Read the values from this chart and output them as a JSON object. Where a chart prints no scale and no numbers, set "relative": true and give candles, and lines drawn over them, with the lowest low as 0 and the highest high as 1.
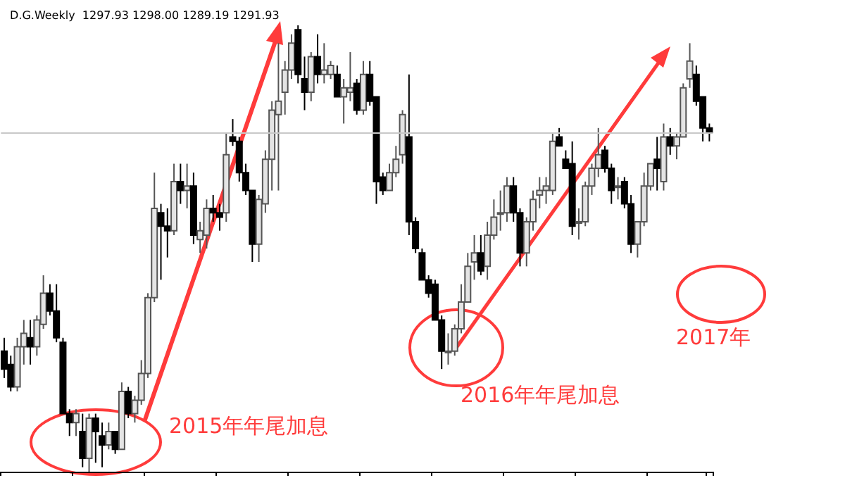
{
  "chart_data": {
    "type": "candlestick",
    "title": "D.G.Weekly  1297.93 1298.00 1289.19 1291.93",
    "relative": true,
    "grid": false,
    "categories": [
      null,
      null,
      null,
      null,
      null,
      null,
      null,
      null,
      null,
      null,
      null,
      null,
      null,
      null,
      null,
      null,
      null,
      null,
      null,
      null,
      null,
      null,
      null,
      null,
      null,
      null,
      null,
      null,
      null,
      null,
      null,
      null,
      null,
      null,
      null,
      null,
      null,
      null,
      null,
      null,
      null,
      null,
      null,
      null,
      null,
      null,
      null,
      null,
      null,
      null,
      null,
      null,
      null,
      null,
      null,
      null,
      null,
      null,
      null,
      null,
      null,
      null,
      null,
      null,
      null,
      null,
      null,
      null,
      null,
      null,
      null,
      null,
      null,
      null,
      null,
      null,
      null,
      null,
      null,
      null,
      null,
      null,
      null,
      null,
      null,
      null,
      null,
      null,
      null,
      null,
      null,
      null,
      null,
      null,
      null,
      null,
      null,
      null,
      null,
      null,
      null,
      null,
      null,
      null,
      null,
      null,
      null,
      null,
      null
    ],
    "ohlc": [
      [
        0.27,
        0.3,
        0.21,
        0.23
      ],
      [
        0.24,
        0.26,
        0.18,
        0.19
      ],
      [
        0.19,
        0.3,
        0.18,
        0.28
      ],
      [
        0.28,
        0.34,
        0.24,
        0.31
      ],
      [
        0.3,
        0.34,
        0.24,
        0.28
      ],
      [
        0.28,
        0.35,
        0.26,
        0.34
      ],
      [
        0.33,
        0.44,
        0.32,
        0.4
      ],
      [
        0.4,
        0.42,
        0.35,
        0.36
      ],
      [
        0.36,
        0.42,
        0.29,
        0.3
      ],
      [
        0.29,
        0.3,
        0.13,
        0.13
      ],
      [
        0.13,
        0.14,
        0.08,
        0.11
      ],
      [
        0.11,
        0.14,
        0.08,
        0.13
      ],
      [
        0.09,
        0.13,
        0.01,
        0.03
      ],
      [
        0.03,
        0.13,
        0.0,
        0.12
      ],
      [
        0.12,
        0.13,
        0.02,
        0.09
      ],
      [
        0.08,
        0.11,
        0.01,
        0.06
      ],
      [
        0.06,
        0.11,
        0.05,
        0.09
      ],
      [
        0.09,
        0.09,
        0.04,
        0.05
      ],
      [
        0.05,
        0.2,
        0.05,
        0.18
      ],
      [
        0.18,
        0.19,
        0.12,
        0.13
      ],
      [
        0.13,
        0.17,
        0.11,
        0.16
      ],
      [
        0.16,
        0.25,
        0.15,
        0.22
      ],
      [
        0.22,
        0.4,
        0.21,
        0.39
      ],
      [
        0.39,
        0.67,
        0.38,
        0.59
      ],
      [
        0.58,
        0.6,
        0.43,
        0.55
      ],
      [
        0.55,
        0.59,
        0.48,
        0.54
      ],
      [
        0.54,
        0.69,
        0.53,
        0.65
      ],
      [
        0.65,
        0.69,
        0.6,
        0.63
      ],
      [
        0.63,
        0.69,
        0.59,
        0.64
      ],
      [
        0.64,
        0.67,
        0.51,
        0.53
      ],
      [
        0.52,
        0.56,
        0.49,
        0.54
      ],
      [
        0.53,
        0.61,
        0.5,
        0.59
      ],
      [
        0.59,
        0.62,
        0.56,
        0.58
      ],
      [
        0.58,
        0.6,
        0.54,
        0.57
      ],
      [
        0.58,
        0.76,
        0.56,
        0.71
      ],
      [
        0.75,
        0.79,
        0.73,
        0.74
      ],
      [
        0.74,
        0.75,
        0.65,
        0.67
      ],
      [
        0.67,
        0.69,
        0.62,
        0.63
      ],
      [
        0.63,
        0.63,
        0.47,
        0.51
      ],
      [
        0.51,
        0.62,
        0.47,
        0.61
      ],
      [
        0.6,
        0.72,
        0.58,
        0.7
      ],
      [
        0.7,
        0.83,
        0.63,
        0.81
      ],
      [
        0.8,
        0.96,
        0.63,
        0.83
      ],
      [
        0.85,
        0.92,
        0.8,
        0.9
      ],
      [
        0.9,
        0.98,
        0.88,
        0.96
      ],
      [
        0.99,
        1.0,
        0.87,
        0.89
      ],
      [
        0.88,
        0.93,
        0.81,
        0.85
      ],
      [
        0.85,
        0.94,
        0.83,
        0.93
      ],
      [
        0.93,
        0.98,
        0.87,
        0.89
      ],
      [
        0.89,
        0.96,
        0.87,
        0.9
      ],
      [
        0.89,
        0.92,
        0.88,
        0.91
      ],
      [
        0.89,
        0.91,
        0.84,
        0.84
      ],
      [
        0.84,
        0.88,
        0.78,
        0.86
      ],
      [
        0.85,
        0.94,
        0.83,
        0.86
      ],
      [
        0.87,
        0.88,
        0.8,
        0.81
      ],
      [
        0.81,
        0.92,
        0.8,
        0.89
      ],
      [
        0.89,
        0.92,
        0.82,
        0.83
      ],
      [
        0.84,
        0.84,
        0.6,
        0.65
      ],
      [
        0.66,
        0.67,
        0.62,
        0.63
      ],
      [
        0.63,
        0.69,
        0.63,
        0.67
      ],
      [
        0.67,
        0.73,
        0.66,
        0.7
      ],
      [
        0.71,
        0.81,
        0.69,
        0.8
      ],
      [
        0.75,
        0.89,
        0.53,
        0.56
      ],
      [
        0.56,
        0.57,
        0.49,
        0.5
      ],
      [
        0.49,
        0.5,
        0.43,
        0.43
      ],
      [
        0.43,
        0.44,
        0.39,
        0.4
      ],
      [
        0.42,
        0.43,
        0.34,
        0.34
      ],
      [
        0.34,
        0.35,
        0.23,
        0.27
      ],
      [
        0.27,
        0.31,
        0.24,
        0.27
      ],
      [
        0.27,
        0.33,
        0.26,
        0.32
      ],
      [
        0.32,
        0.42,
        0.31,
        0.38
      ],
      [
        0.38,
        0.49,
        0.38,
        0.46
      ],
      [
        0.47,
        0.53,
        0.43,
        0.49
      ],
      [
        0.49,
        0.53,
        0.44,
        0.45
      ],
      [
        0.46,
        0.56,
        0.43,
        0.53
      ],
      [
        0.53,
        0.61,
        0.52,
        0.57
      ],
      [
        0.58,
        0.63,
        0.54,
        0.58
      ],
      [
        0.58,
        0.66,
        0.56,
        0.64
      ],
      [
        0.64,
        0.66,
        0.56,
        0.58
      ],
      [
        0.58,
        0.59,
        0.46,
        0.49
      ],
      [
        0.49,
        0.57,
        0.46,
        0.56
      ],
      [
        0.56,
        0.63,
        0.54,
        0.61
      ],
      [
        0.62,
        0.66,
        0.59,
        0.63
      ],
      [
        0.63,
        0.66,
        0.6,
        0.64
      ],
      [
        0.63,
        0.76,
        0.62,
        0.74
      ],
      [
        0.75,
        0.77,
        0.73,
        0.73
      ],
      [
        0.7,
        0.72,
        0.68,
        0.68
      ],
      [
        0.69,
        0.74,
        0.53,
        0.55
      ],
      [
        0.56,
        0.59,
        0.52,
        0.56
      ],
      [
        0.56,
        0.65,
        0.55,
        0.64
      ],
      [
        0.64,
        0.69,
        0.62,
        0.68
      ],
      [
        0.68,
        0.77,
        0.66,
        0.71
      ],
      [
        0.72,
        0.73,
        0.67,
        0.68
      ],
      [
        0.68,
        0.69,
        0.6,
        0.63
      ],
      [
        0.64,
        0.66,
        0.61,
        0.64
      ],
      [
        0.65,
        0.66,
        0.59,
        0.6
      ],
      [
        0.6,
        0.62,
        0.49,
        0.51
      ],
      [
        0.51,
        0.56,
        0.48,
        0.56
      ],
      [
        0.56,
        0.67,
        0.55,
        0.64
      ],
      [
        0.64,
        0.69,
        0.63,
        0.69
      ],
      [
        0.7,
        0.75,
        0.63,
        0.68
      ],
      [
        0.65,
        0.78,
        0.63,
        0.75
      ],
      [
        0.75,
        0.77,
        0.71,
        0.73
      ],
      [
        0.73,
        0.76,
        0.7,
        0.75
      ],
      [
        0.75,
        0.87,
        0.75,
        0.86
      ],
      [
        0.88,
        0.96,
        0.86,
        0.92
      ],
      [
        0.89,
        0.91,
        0.82,
        0.83
      ],
      [
        0.84,
        0.84,
        0.74,
        0.77
      ],
      [
        0.77,
        0.78,
        0.74,
        0.76
      ]
    ],
    "ref_lines": [
      {
        "axis": "y",
        "value": 0.76,
        "color": "#c8c8c8"
      }
    ],
    "annotations": [
      "2015年年尾加息",
      "2016年年尾加息",
      "2017年"
    ]
  }
}
